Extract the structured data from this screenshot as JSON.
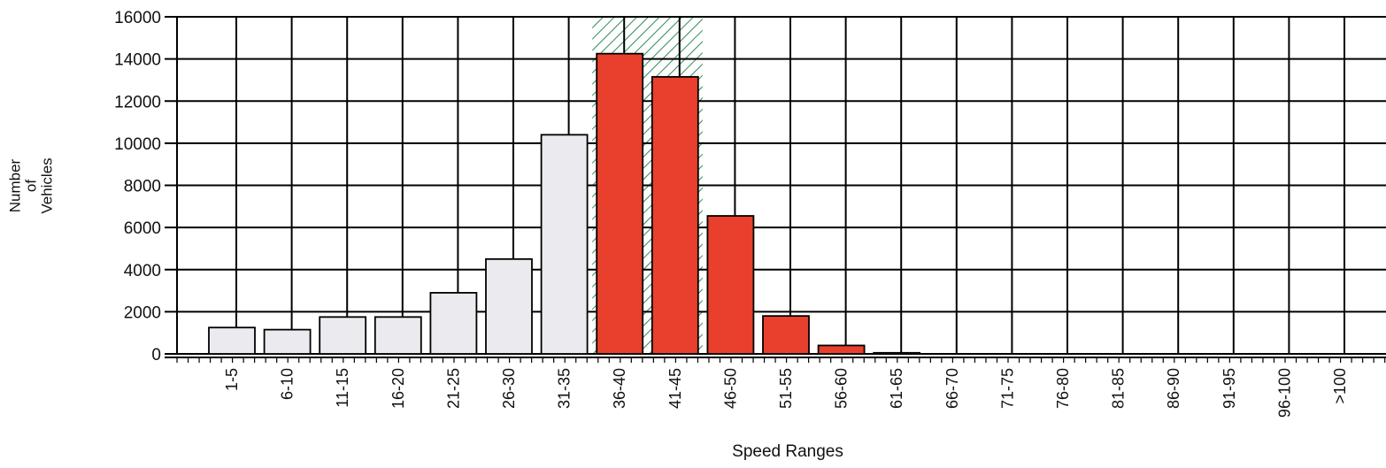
{
  "chart_data": {
    "type": "bar",
    "xlabel": "Speed Ranges",
    "ylabel": "Number of\nVehicles",
    "ylim": [
      0,
      16000
    ],
    "yticks": [
      0,
      2000,
      4000,
      6000,
      8000,
      10000,
      12000,
      14000,
      16000
    ],
    "grid": true,
    "categories": [
      "1-5",
      "6-10",
      "11-15",
      "16-20",
      "21-25",
      "26-30",
      "31-35",
      "36-40",
      "41-45",
      "46-50",
      "51-55",
      "56-60",
      "61-65",
      "66-70",
      "71-75",
      "76-80",
      "81-85",
      "86-90",
      "91-95",
      "96-100",
      ">100"
    ],
    "values": [
      1250,
      1150,
      1750,
      1750,
      2900,
      4500,
      10400,
      14250,
      13150,
      6550,
      1800,
      400,
      50,
      0,
      0,
      0,
      0,
      0,
      0,
      0,
      0
    ],
    "highlighted_categories": [
      "36-40",
      "41-45",
      "46-50",
      "51-55",
      "56-60",
      "61-65"
    ],
    "hatched_band_categories": [
      "36-40",
      "41-45"
    ],
    "colors": {
      "default_bar": "#ebebef",
      "highlight_bar": "#e8402c",
      "hatch": "#2e8b57",
      "grid": "#000000"
    }
  }
}
